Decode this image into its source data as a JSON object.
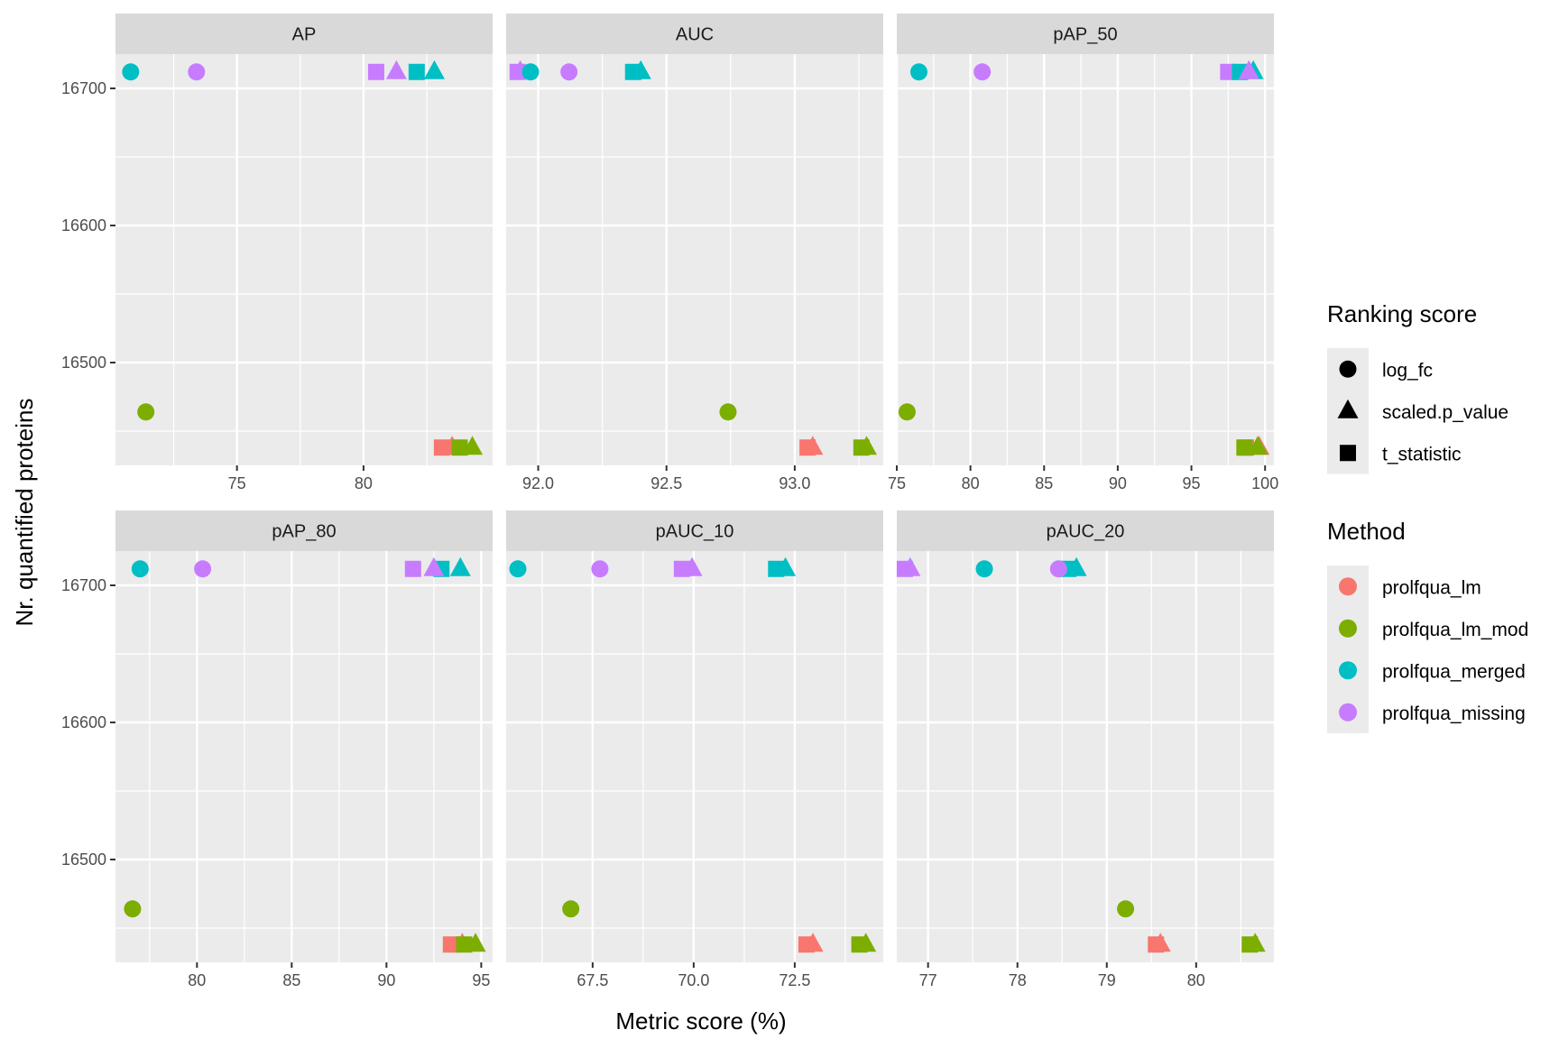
{
  "chart_data": {
    "type": "scatter",
    "facet": "wrap",
    "xlabel": "Metric score (%)",
    "ylabel": "Nr. quantified proteins",
    "ylim": [
      16425,
      16725
    ],
    "yticks": [
      16500,
      16600,
      16700
    ],
    "y_minor": [
      16450,
      16550,
      16650
    ],
    "grid": true,
    "colors": {
      "prolfqua_lm": "#F8766D",
      "prolfqua_lm_mod": "#7CAE00",
      "prolfqua_merged": "#00BFC4",
      "prolfqua_missing": "#C77CFF"
    },
    "legends": [
      {
        "title": "Ranking score",
        "type": "shape",
        "entries": [
          {
            "label": "log_fc",
            "shape": "circle"
          },
          {
            "label": "scaled.p_value",
            "shape": "triangle"
          },
          {
            "label": "t_statistic",
            "shape": "square"
          }
        ]
      },
      {
        "title": "Method",
        "type": "color",
        "entries": [
          {
            "label": "prolfqua_lm",
            "color": "#F8766D"
          },
          {
            "label": "prolfqua_lm_mod",
            "color": "#7CAE00"
          },
          {
            "label": "prolfqua_merged",
            "color": "#00BFC4"
          },
          {
            "label": "prolfqua_missing",
            "color": "#C77CFF"
          }
        ]
      }
    ],
    "legend_position": "right",
    "panels": [
      {
        "title": "AP",
        "xlim": [
          70.2,
          85.1
        ],
        "xticks": [
          75,
          80
        ],
        "xtick_labels": [
          "75",
          "80"
        ],
        "x_minor": [
          72.5,
          77.5,
          82.5
        ],
        "points": [
          {
            "method": "prolfqua_merged",
            "score": "log_fc",
            "x": 70.8,
            "y": 16712
          },
          {
            "method": "prolfqua_missing",
            "score": "log_fc",
            "x": 73.4,
            "y": 16712
          },
          {
            "method": "prolfqua_missing",
            "score": "t_statistic",
            "x": 80.5,
            "y": 16712
          },
          {
            "method": "prolfqua_missing",
            "score": "scaled.p_value",
            "x": 81.3,
            "y": 16712
          },
          {
            "method": "prolfqua_merged",
            "score": "t_statistic",
            "x": 82.1,
            "y": 16712
          },
          {
            "method": "prolfqua_merged",
            "score": "scaled.p_value",
            "x": 82.8,
            "y": 16712
          },
          {
            "method": "prolfqua_lm_mod",
            "score": "log_fc",
            "x": 71.4,
            "y": 16464
          },
          {
            "method": "prolfqua_lm",
            "score": "t_statistic",
            "x": 83.1,
            "y": 16438
          },
          {
            "method": "prolfqua_lm",
            "score": "scaled.p_value",
            "x": 83.5,
            "y": 16438
          },
          {
            "method": "prolfqua_lm_mod",
            "score": "t_statistic",
            "x": 83.8,
            "y": 16438
          },
          {
            "method": "prolfqua_lm_mod",
            "score": "scaled.p_value",
            "x": 84.3,
            "y": 16438
          }
        ]
      },
      {
        "title": "AUC",
        "xlim": [
          91.875,
          93.345
        ],
        "xticks": [
          92.0,
          92.5,
          93.0
        ],
        "xtick_labels": [
          "92.0",
          "92.5",
          "93.0"
        ],
        "x_minor": [
          92.25,
          92.75,
          93.25
        ],
        "points": [
          {
            "method": "prolfqua_missing",
            "score": "t_statistic",
            "x": 91.92,
            "y": 16712
          },
          {
            "method": "prolfqua_missing",
            "score": "scaled.p_value",
            "x": 91.93,
            "y": 16712
          },
          {
            "method": "prolfqua_merged",
            "score": "log_fc",
            "x": 91.97,
            "y": 16712
          },
          {
            "method": "prolfqua_missing",
            "score": "log_fc",
            "x": 92.12,
            "y": 16712
          },
          {
            "method": "prolfqua_merged",
            "score": "t_statistic",
            "x": 92.37,
            "y": 16712
          },
          {
            "method": "prolfqua_merged",
            "score": "scaled.p_value",
            "x": 92.4,
            "y": 16712
          },
          {
            "method": "prolfqua_lm_mod",
            "score": "log_fc",
            "x": 92.74,
            "y": 16464
          },
          {
            "method": "prolfqua_lm",
            "score": "t_statistic",
            "x": 93.05,
            "y": 16438
          },
          {
            "method": "prolfqua_lm",
            "score": "scaled.p_value",
            "x": 93.07,
            "y": 16438
          },
          {
            "method": "prolfqua_lm_mod",
            "score": "t_statistic",
            "x": 93.26,
            "y": 16438
          },
          {
            "method": "prolfqua_lm_mod",
            "score": "scaled.p_value",
            "x": 93.28,
            "y": 16438
          }
        ]
      },
      {
        "title": "pAP_50",
        "xlim": [
          75.0,
          100.6
        ],
        "xticks": [
          75,
          80,
          85,
          90,
          95,
          100
        ],
        "xtick_labels": [
          "75",
          "80",
          "85",
          "90",
          "95",
          "100"
        ],
        "x_minor": [
          77.5,
          82.5,
          87.5,
          92.5,
          97.5
        ],
        "points": [
          {
            "method": "prolfqua_merged",
            "score": "log_fc",
            "x": 76.5,
            "y": 16712
          },
          {
            "method": "prolfqua_missing",
            "score": "log_fc",
            "x": 80.8,
            "y": 16712
          },
          {
            "method": "prolfqua_missing",
            "score": "t_statistic",
            "x": 97.5,
            "y": 16712
          },
          {
            "method": "prolfqua_merged",
            "score": "t_statistic",
            "x": 98.3,
            "y": 16712
          },
          {
            "method": "prolfqua_merged",
            "score": "scaled.p_value",
            "x": 99.2,
            "y": 16712
          },
          {
            "method": "prolfqua_missing",
            "score": "scaled.p_value",
            "x": 98.9,
            "y": 16712
          },
          {
            "method": "prolfqua_lm_mod",
            "score": "log_fc",
            "x": 75.7,
            "y": 16464
          },
          {
            "method": "prolfqua_lm",
            "score": "t_statistic",
            "x": 98.7,
            "y": 16438
          },
          {
            "method": "prolfqua_lm",
            "score": "scaled.p_value",
            "x": 99.6,
            "y": 16438
          },
          {
            "method": "prolfqua_lm_mod",
            "score": "t_statistic",
            "x": 98.6,
            "y": 16438
          },
          {
            "method": "prolfqua_lm_mod",
            "score": "scaled.p_value",
            "x": 99.5,
            "y": 16438
          }
        ]
      },
      {
        "title": "pAP_80",
        "xlim": [
          75.7,
          95.6
        ],
        "xticks": [
          80,
          85,
          90,
          95
        ],
        "xtick_labels": [
          "80",
          "85",
          "90",
          "95"
        ],
        "x_minor": [
          77.5,
          82.5,
          87.5,
          92.5
        ],
        "points": [
          {
            "method": "prolfqua_merged",
            "score": "log_fc",
            "x": 77.0,
            "y": 16712
          },
          {
            "method": "prolfqua_missing",
            "score": "log_fc",
            "x": 80.3,
            "y": 16712
          },
          {
            "method": "prolfqua_missing",
            "score": "t_statistic",
            "x": 91.4,
            "y": 16712
          },
          {
            "method": "prolfqua_merged",
            "score": "t_statistic",
            "x": 92.9,
            "y": 16712
          },
          {
            "method": "prolfqua_missing",
            "score": "scaled.p_value",
            "x": 92.5,
            "y": 16712
          },
          {
            "method": "prolfqua_merged",
            "score": "scaled.p_value",
            "x": 93.9,
            "y": 16712
          },
          {
            "method": "prolfqua_lm_mod",
            "score": "log_fc",
            "x": 76.6,
            "y": 16464
          },
          {
            "method": "prolfqua_lm",
            "score": "t_statistic",
            "x": 93.4,
            "y": 16438
          },
          {
            "method": "prolfqua_lm",
            "score": "scaled.p_value",
            "x": 94.0,
            "y": 16438
          },
          {
            "method": "prolfqua_lm_mod",
            "score": "t_statistic",
            "x": 94.1,
            "y": 16438
          },
          {
            "method": "prolfqua_lm_mod",
            "score": "scaled.p_value",
            "x": 94.7,
            "y": 16438
          }
        ]
      },
      {
        "title": "pAUC_10",
        "xlim": [
          65.36,
          74.69
        ],
        "xticks": [
          67.5,
          70.0,
          72.5
        ],
        "xtick_labels": [
          "67.5",
          "70.0",
          "72.5"
        ],
        "x_minor": [
          66.25,
          68.75,
          71.25,
          73.75
        ],
        "points": [
          {
            "method": "prolfqua_merged",
            "score": "log_fc",
            "x": 65.65,
            "y": 16712
          },
          {
            "method": "prolfqua_missing",
            "score": "log_fc",
            "x": 67.68,
            "y": 16712
          },
          {
            "method": "prolfqua_missing",
            "score": "t_statistic",
            "x": 69.71,
            "y": 16712
          },
          {
            "method": "prolfqua_missing",
            "score": "scaled.p_value",
            "x": 69.96,
            "y": 16712
          },
          {
            "method": "prolfqua_merged",
            "score": "t_statistic",
            "x": 72.04,
            "y": 16712
          },
          {
            "method": "prolfqua_merged",
            "score": "scaled.p_value",
            "x": 72.27,
            "y": 16712
          },
          {
            "method": "prolfqua_lm_mod",
            "score": "log_fc",
            "x": 66.96,
            "y": 16464
          },
          {
            "method": "prolfqua_lm",
            "score": "t_statistic",
            "x": 72.79,
            "y": 16438
          },
          {
            "method": "prolfqua_lm",
            "score": "scaled.p_value",
            "x": 72.95,
            "y": 16438
          },
          {
            "method": "prolfqua_lm_mod",
            "score": "t_statistic",
            "x": 74.1,
            "y": 16438
          },
          {
            "method": "prolfqua_lm_mod",
            "score": "scaled.p_value",
            "x": 74.26,
            "y": 16438
          }
        ]
      },
      {
        "title": "pAUC_20",
        "xlim": [
          76.65,
          80.87
        ],
        "xticks": [
          77,
          78,
          79,
          80
        ],
        "xtick_labels": [
          "77",
          "78",
          "79",
          "80"
        ],
        "x_minor": [
          77.5,
          78.5,
          79.5,
          80.5
        ],
        "points": [
          {
            "method": "prolfqua_missing",
            "score": "t_statistic",
            "x": 76.74,
            "y": 16712
          },
          {
            "method": "prolfqua_missing",
            "score": "scaled.p_value",
            "x": 76.8,
            "y": 16712
          },
          {
            "method": "prolfqua_merged",
            "score": "log_fc",
            "x": 77.63,
            "y": 16712
          },
          {
            "method": "prolfqua_merged",
            "score": "t_statistic",
            "x": 78.57,
            "y": 16712
          },
          {
            "method": "prolfqua_merged",
            "score": "scaled.p_value",
            "x": 78.66,
            "y": 16712
          },
          {
            "method": "prolfqua_missing",
            "score": "log_fc",
            "x": 78.46,
            "y": 16712
          },
          {
            "method": "prolfqua_lm_mod",
            "score": "log_fc",
            "x": 79.21,
            "y": 16464
          },
          {
            "method": "prolfqua_lm",
            "score": "t_statistic",
            "x": 79.55,
            "y": 16438
          },
          {
            "method": "prolfqua_lm",
            "score": "scaled.p_value",
            "x": 79.6,
            "y": 16438
          },
          {
            "method": "prolfqua_lm_mod",
            "score": "t_statistic",
            "x": 80.6,
            "y": 16438
          },
          {
            "method": "prolfqua_lm_mod",
            "score": "scaled.p_value",
            "x": 80.66,
            "y": 16438
          }
        ]
      }
    ]
  }
}
